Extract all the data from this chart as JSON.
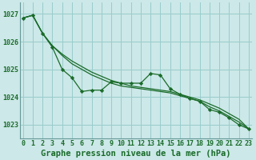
{
  "title": "Graphe pression niveau de la mer (hPa)",
  "background_color": "#cce8e8",
  "grid_color": "#99cccc",
  "line_color": "#1a6b2a",
  "spine_color": "#669999",
  "xlim": [
    -0.3,
    23.3
  ],
  "ylim": [
    1022.5,
    1027.4
  ],
  "yticks": [
    1023,
    1024,
    1025,
    1026,
    1027
  ],
  "xtick_labels": [
    "0",
    "1",
    "2",
    "3",
    "4",
    "5",
    "6",
    "7",
    "8",
    "9",
    "10",
    "11",
    "12",
    "13",
    "14",
    "15",
    "16",
    "17",
    "18",
    "19",
    "20",
    "21",
    "22",
    "23"
  ],
  "series_smooth1": [
    1026.85,
    1026.95,
    1026.3,
    1025.85,
    1025.55,
    1025.3,
    1025.1,
    1024.9,
    1024.75,
    1024.6,
    1024.5,
    1024.4,
    1024.35,
    1024.3,
    1024.25,
    1024.2,
    1024.1,
    1024.0,
    1023.9,
    1023.75,
    1023.6,
    1023.4,
    1023.2,
    1022.85
  ],
  "series_smooth2": [
    1026.85,
    1026.95,
    1026.3,
    1025.85,
    1025.5,
    1025.2,
    1025.0,
    1024.8,
    1024.65,
    1024.5,
    1024.4,
    1024.35,
    1024.3,
    1024.25,
    1024.2,
    1024.15,
    1024.05,
    1023.95,
    1023.85,
    1023.65,
    1023.5,
    1023.3,
    1023.1,
    1022.85
  ],
  "series_zigzag": [
    1026.85,
    1026.95,
    1026.3,
    1025.8,
    1025.0,
    1024.7,
    1024.2,
    1024.25,
    1024.25,
    1024.55,
    1024.5,
    1024.5,
    1024.5,
    1024.85,
    1024.8,
    1024.3,
    1024.1,
    1023.95,
    1023.85,
    1023.55,
    1023.45,
    1023.25,
    1023.0,
    1022.85
  ],
  "title_fontsize": 7.5,
  "tick_fontsize": 6
}
